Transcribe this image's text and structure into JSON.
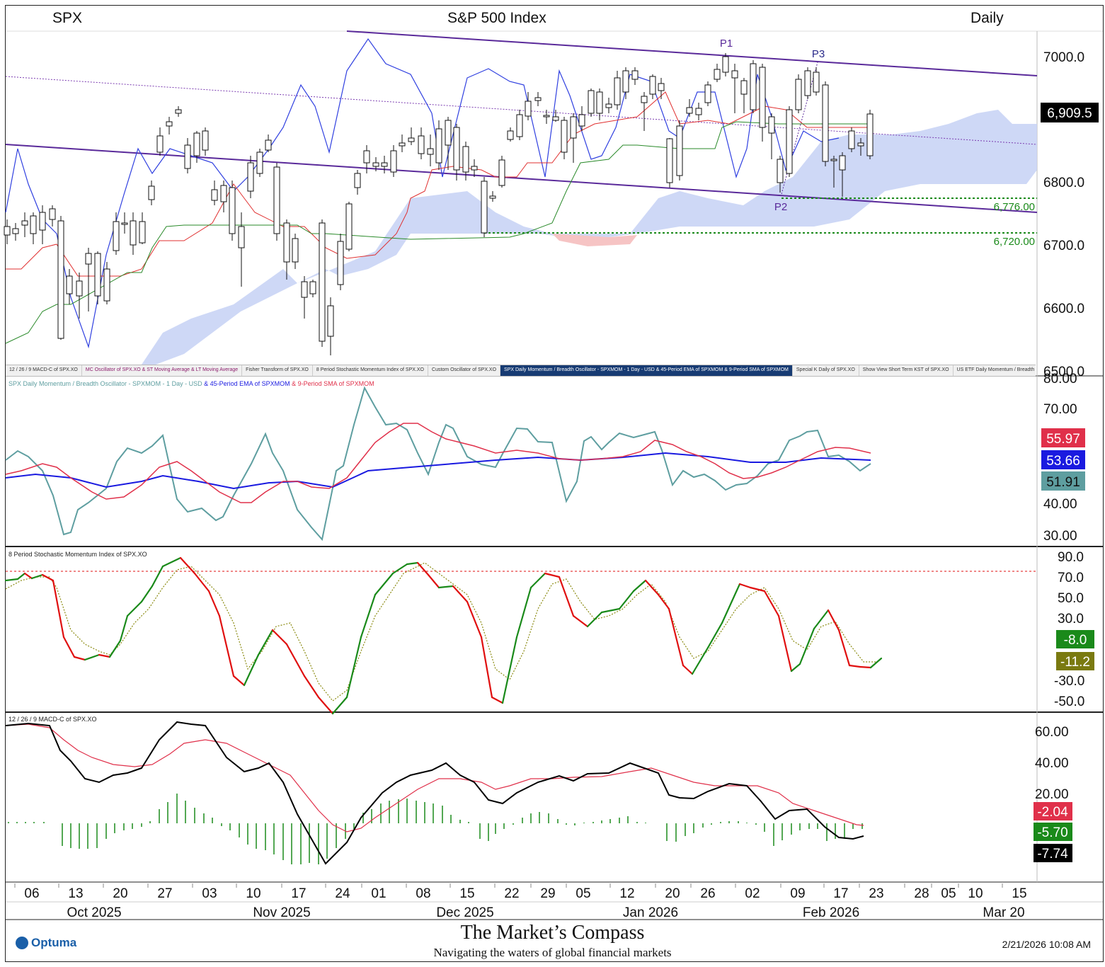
{
  "header": {
    "symbol": "SPX",
    "title": "S&P 500 Index",
    "period": "Daily"
  },
  "price_panel": {
    "last_value": "6,909.5",
    "last_value_color": "#000000",
    "y_ticks": [
      "7000.0",
      "6800.0",
      "6700.0",
      "6600.0",
      "6500.0"
    ],
    "annotations": [
      "P1",
      "P2",
      "P3"
    ],
    "support_levels": [
      "6,776.00",
      "6,720.00"
    ]
  },
  "tabs": [
    "12 / 26 / 9 MACD-C of SPX.XO",
    "MC Oscillator of SPX.XO & ST Moving Average & LT Moving Average",
    "Fisher Transform of SPX.XO",
    "8 Period Stochastic Momentum Index of SPX.XO",
    "Custom Oscillator of SPX.XO",
    "SPX Daily Momentum / Breadth Oscillator - SPXMOM - 1 Day - USD & 45-Period EMA of SPXMOM & 9-Period SMA of SPXMOM",
    "Special K Daily of SPX.XO",
    "Show View Short Term KST of SPX.XO",
    "US ETF Daily Momentum / Breadth - US..."
  ],
  "tab_nav": [
    "‹",
    "›"
  ],
  "breadth_panel": {
    "title_a": "SPX Daily Momentum / Breadth Oscillator - SPXMOM - 1 Day - USD",
    "title_b": " & 45-Period EMA of SPXMOM",
    "title_c": " & 9-Period SMA of SPXMOM",
    "y_ticks": [
      "80.00",
      "70.00",
      "40.00",
      "30.00"
    ],
    "values": {
      "sma": "55.97",
      "ema": "53.66",
      "osc": "51.91"
    }
  },
  "smi_panel": {
    "title": "8 Period Stochastic Momentum Index of SPX.XO",
    "y_ticks": [
      "90.0",
      "70.0",
      "50.0",
      "30.0",
      "-30.0",
      "-50.0"
    ],
    "values": {
      "smi": "-8.0",
      "signal": "-11.2"
    }
  },
  "macd_panel": {
    "title": "12 / 26 / 9 MACD-C of SPX.XO",
    "y_ticks": [
      "60.00",
      "40.00",
      "20.00"
    ],
    "values": {
      "signal": "-2.04",
      "hist": "-5.70",
      "macd": "-7.74"
    }
  },
  "x_axis": {
    "days": [
      "06",
      "13",
      "20",
      "27",
      "03",
      "10",
      "17",
      "24",
      "01",
      "08",
      "15",
      "22",
      "29",
      "05",
      "12",
      "20",
      "26",
      "02",
      "09",
      "17",
      "23",
      "28",
      "05",
      "10",
      "15"
    ],
    "months": [
      "Oct 2025",
      "Nov 2025",
      "Dec 2025",
      "Jan 2026",
      "Feb 2026",
      "Mar 20"
    ]
  },
  "footer": {
    "title": "The Market’s Compass",
    "subtitle": "Navigating the waters of global financial markets",
    "datetime": "2/21/2026 10:08 AM",
    "logo": "Optuma"
  },
  "colors": {
    "up_candle": "#ffffff",
    "down_candle": "#000000",
    "tenkan": "#e03030",
    "kijun": "#2a8a2a",
    "chikou": "#3040e0",
    "cloud": "#c9d4f5",
    "cloud_bear": "#f6c4c4",
    "channel": "#5a2a9a",
    "support": "#1a8a1a",
    "breadth_osc": "#5e9ea0",
    "breadth_ema": "#1a1ae0",
    "breadth_sma": "#e0304a",
    "smi_up": "#1a8a1a",
    "smi_down": "#e01010",
    "smi_signal": "#8a8a10",
    "macd": "#000000",
    "macd_signal": "#e0304a",
    "macd_hist": "#1a8a1a"
  },
  "chart_data": [
    {
      "type": "candlestick",
      "title": "S&P 500 Index",
      "ylim": [
        6500,
        7050
      ],
      "x": [
        "2025-10-06",
        "2025-10-13",
        "2025-10-20",
        "2025-10-27",
        "2025-11-03",
        "2025-11-10",
        "2025-11-17",
        "2025-11-24",
        "2025-12-01",
        "2025-12-08",
        "2025-12-15",
        "2025-12-22",
        "2025-12-29",
        "2026-01-05",
        "2026-01-12",
        "2026-01-20",
        "2026-01-26",
        "2026-02-02",
        "2026-02-09",
        "2026-02-17",
        "2026-02-20"
      ],
      "close": [
        6710,
        6660,
        6720,
        6850,
        6760,
        6740,
        6620,
        6810,
        6840,
        6850,
        6800,
        6850,
        6880,
        6940,
        6960,
        6900,
        6950,
        6930,
        6830,
        6840,
        6909.5
      ],
      "support": [
        6776,
        6720
      ]
    },
    {
      "type": "line",
      "title": "SPXMOM",
      "ylim": [
        28,
        80
      ],
      "series": [
        {
          "name": "SPX Daily Momentum / Breadth Oscillator - SPXMOM - 1 Day - USD",
          "values": [
            49,
            52,
            32,
            35,
            50,
            60,
            48,
            33,
            42,
            62,
            77,
            60,
            55,
            53,
            42,
            52,
            48,
            55,
            60,
            45,
            51.91
          ]
        },
        {
          "name": "45-Period EMA of SPXMOM",
          "values": [
            47,
            46,
            45,
            46,
            47,
            46,
            46,
            47,
            49,
            51,
            52,
            53,
            53,
            53,
            53,
            53,
            53,
            52,
            52,
            53,
            53.66
          ]
        },
        {
          "name": "9-Period SMA of SPXMOM",
          "values": [
            48,
            50,
            44,
            42,
            47,
            52,
            44,
            42,
            45,
            55,
            64,
            60,
            56,
            54,
            52,
            54,
            50,
            49,
            53,
            56,
            55.97
          ]
        }
      ]
    },
    {
      "type": "line",
      "title": "8 Period Stochastic Momentum Index of SPX.XO",
      "ylim": [
        -55,
        95
      ],
      "series": [
        {
          "name": "SMI",
          "values": [
            65,
            70,
            -10,
            30,
            85,
            50,
            -30,
            30,
            -50,
            70,
            82,
            55,
            -50,
            70,
            30,
            65,
            -20,
            60,
            -20,
            30,
            -8
          ]
        },
        {
          "name": "Signal",
          "values": [
            60,
            68,
            5,
            20,
            80,
            55,
            -15,
            20,
            -40,
            55,
            80,
            60,
            -35,
            60,
            35,
            60,
            -10,
            55,
            -5,
            20,
            -11.2
          ]
        }
      ]
    },
    {
      "type": "line",
      "title": "12 / 26 / 9 MACD-C of SPX.XO",
      "ylim": [
        -25,
        65
      ],
      "series": [
        {
          "name": "MACD",
          "values": [
            62,
            45,
            30,
            35,
            65,
            40,
            30,
            -15,
            10,
            32,
            38,
            20,
            30,
            32,
            38,
            20,
            25,
            10,
            -2,
            -7.74,
            -7.74
          ]
        },
        {
          "name": "Signal",
          "values": [
            62,
            50,
            38,
            38,
            50,
            48,
            40,
            10,
            10,
            22,
            30,
            25,
            28,
            30,
            33,
            25,
            24,
            18,
            8,
            -2.04,
            -2.04
          ]
        },
        {
          "name": "Histogram",
          "values": [
            0,
            -5,
            -8,
            -3,
            15,
            -8,
            -10,
            -25,
            0,
            10,
            8,
            -5,
            2,
            2,
            5,
            -5,
            1,
            -8,
            -10,
            -5.7,
            -5.7
          ]
        }
      ]
    }
  ]
}
